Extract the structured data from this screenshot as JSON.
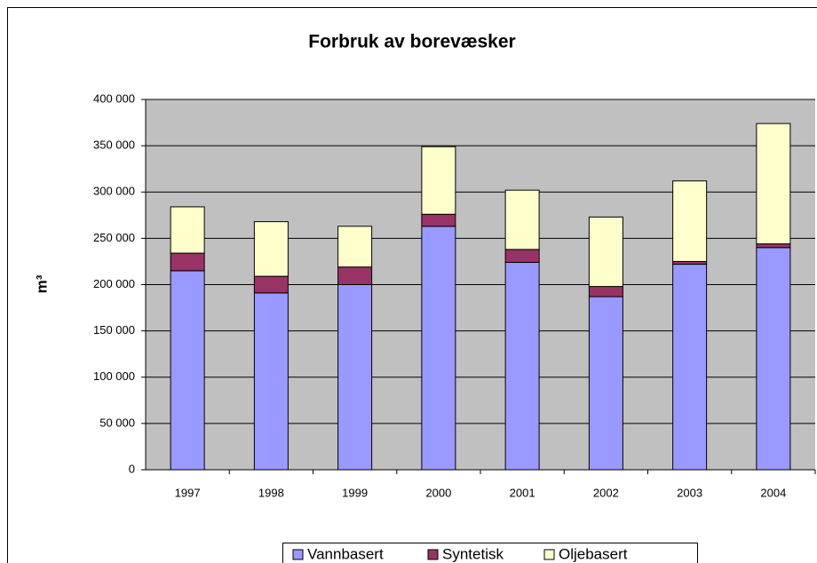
{
  "chart_data": {
    "type": "bar",
    "stacked": true,
    "title": "Forbruk av borevæsker",
    "y_label": "m³",
    "categories": [
      "1997",
      "1998",
      "1999",
      "2000",
      "2001",
      "2002",
      "2003",
      "2004"
    ],
    "series": [
      {
        "name": "Vannbasert",
        "color": "#9999ff",
        "values": [
          215000,
          191000,
          200000,
          263000,
          224000,
          187000,
          222000,
          240000
        ]
      },
      {
        "name": "Syntetisk",
        "color": "#993366",
        "values": [
          19000,
          18000,
          19000,
          13000,
          14000,
          11000,
          3000,
          4000
        ]
      },
      {
        "name": "Oljebasert",
        "color": "#ffffcc",
        "values": [
          50000,
          59000,
          44000,
          73000,
          64000,
          75000,
          87000,
          130000
        ]
      }
    ],
    "ylim": [
      0,
      400000
    ],
    "yticks": [
      0,
      {
        "value": 50000,
        "label": "50 000"
      },
      {
        "value": 100000,
        "label": "100 000"
      },
      {
        "value": 150000,
        "label": "150 000"
      },
      {
        "value": 200000,
        "label": "200 000"
      },
      {
        "value": 250000,
        "label": "250 000"
      },
      {
        "value": 300000,
        "label": "300 000"
      },
      {
        "value": 350000,
        "label": "350 000"
      },
      {
        "value": 400000,
        "label": "400 000"
      }
    ],
    "grid": true,
    "legend": "bottom"
  }
}
